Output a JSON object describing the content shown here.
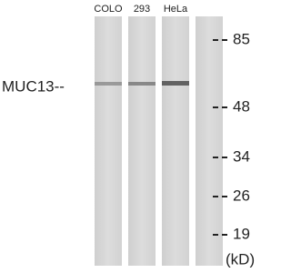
{
  "lanes": [
    "COLO",
    "293",
    "HeLa"
  ],
  "protein_label": "MUC13--",
  "markers": [
    "85",
    "48",
    "34",
    "26",
    "19"
  ],
  "unit": "(kD)"
}
